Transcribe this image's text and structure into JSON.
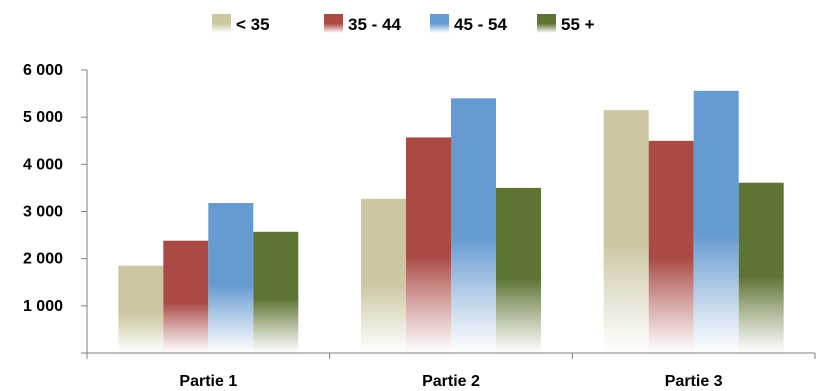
{
  "chart_data": {
    "type": "bar",
    "categories": [
      "Partie 1",
      "Partie 2",
      "Partie 3"
    ],
    "series": [
      {
        "name": "< 35",
        "values": [
          1850,
          3270,
          5150
        ],
        "color": "#ccc6a2"
      },
      {
        "name": "35 - 44",
        "values": [
          2380,
          4570,
          4500
        ],
        "color": "#aa4a45"
      },
      {
        "name": "45 - 54",
        "values": [
          3180,
          5400,
          5560
        ],
        "color": "#669bd1"
      },
      {
        "name": "55 +",
        "values": [
          2570,
          3500,
          3610
        ],
        "color": "#5e7434"
      }
    ],
    "ylim": [
      0,
      6000
    ],
    "yticks": [
      1000,
      2000,
      3000,
      4000,
      5000,
      6000
    ],
    "ytick_labels": [
      "1 000",
      "2 000",
      "3 000",
      "4 000",
      "5 000",
      "6 000"
    ],
    "grid": false,
    "legend": "top-center",
    "title": "",
    "xlabel": "",
    "ylabel": ""
  }
}
